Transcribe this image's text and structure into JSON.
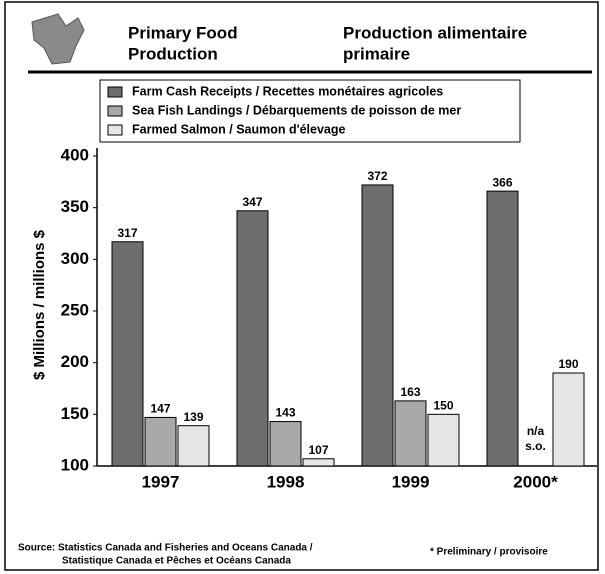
{
  "chart_data": {
    "type": "bar",
    "title": [
      "Primary Food",
      "Production"
    ],
    "subtitle": [
      "Production alimentaire",
      "primaire"
    ],
    "ylabel": "$ Millions / millions $",
    "categories": [
      "1997",
      "1998",
      "1999",
      "2000*"
    ],
    "series": [
      {
        "name": "Farm Cash Receipts / Recettes monétaires agricoles",
        "color": "#6e6e6e",
        "values": [
          317,
          347,
          372,
          366
        ]
      },
      {
        "name": "Sea Fish Landings / Débarquements de poisson de mer",
        "color": "#a9a9a9",
        "values": [
          147,
          143,
          163,
          null
        ]
      },
      {
        "name": "Farmed Salmon / Saumon d'élevage",
        "color": "#e6e6e6",
        "values": [
          139,
          107,
          150,
          190
        ]
      }
    ],
    "missing_label": [
      "n/a",
      "s.o."
    ],
    "ylim": [
      100,
      400
    ],
    "yticks": [
      100,
      150,
      200,
      250,
      300,
      350,
      400
    ],
    "source": [
      "Source: Statistics Canada and Fisheries and Oceans Canada /",
      "Statistique Canada et Pêches et Océans Canada"
    ],
    "footnote": "* Preliminary / provisoire"
  }
}
